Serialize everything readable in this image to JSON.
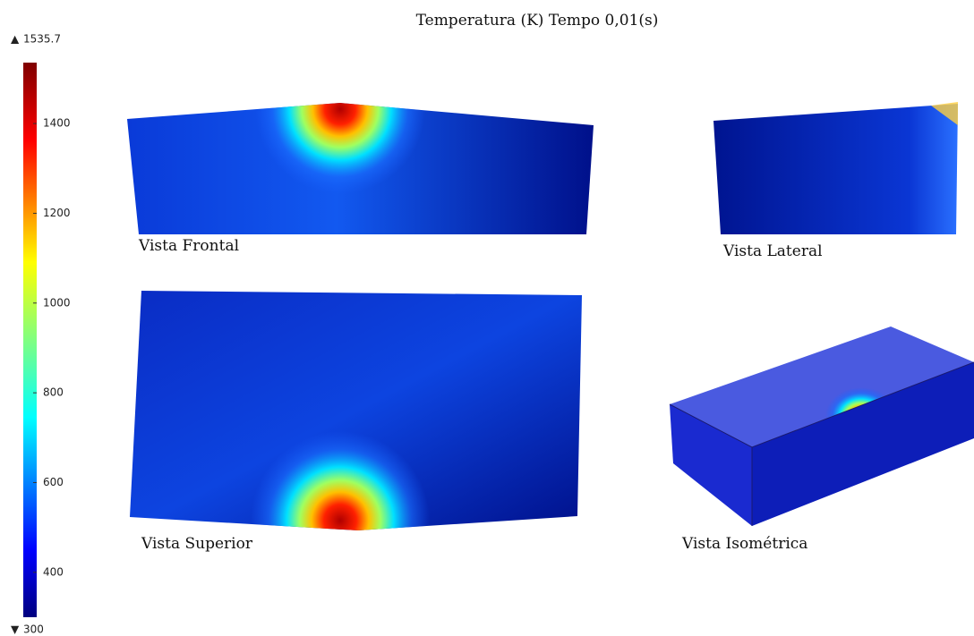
{
  "title": "Temperatura (K) Tempo 0,01(s)",
  "colorbar": {
    "max": 1535.7,
    "min": 300,
    "ticks": [
      400,
      600,
      800,
      1000,
      1200,
      1400
    ]
  },
  "views": [
    "Vista Frontal",
    "Vista Lateral",
    "Vista Superior",
    "Vista Isométrica"
  ]
}
